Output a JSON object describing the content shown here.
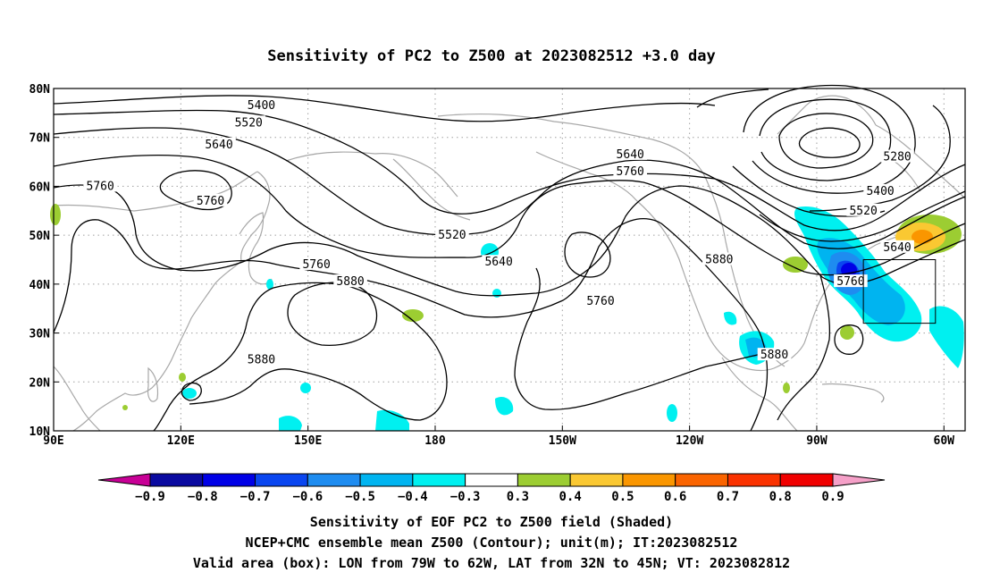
{
  "title": "Sensitivity of PC2 to Z500 at 2023082512 +3.0 day",
  "map": {
    "lon_min": 90,
    "lon_max": 305,
    "lat_min": 10,
    "lat_max": 80,
    "lat_ticks": [
      {
        "value": 80,
        "label": "80N"
      },
      {
        "value": 70,
        "label": "70N"
      },
      {
        "value": 60,
        "label": "60N"
      },
      {
        "value": 50,
        "label": "50N"
      },
      {
        "value": 40,
        "label": "40N"
      },
      {
        "value": 30,
        "label": "30N"
      },
      {
        "value": 20,
        "label": "20N"
      },
      {
        "value": 10,
        "label": "10N"
      }
    ],
    "lon_ticks": [
      {
        "value": 90,
        "label": "90E"
      },
      {
        "value": 120,
        "label": "120E"
      },
      {
        "value": 150,
        "label": "150E"
      },
      {
        "value": 180,
        "label": "180"
      },
      {
        "value": 210,
        "label": "150W"
      },
      {
        "value": 240,
        "label": "120W"
      },
      {
        "value": 270,
        "label": "90W"
      },
      {
        "value": 300,
        "label": "60W"
      }
    ],
    "valid_box": {
      "lon_from": 281,
      "lon_to": 298,
      "lat_from": 32,
      "lat_to": 45
    },
    "contour_labels": [
      {
        "text": "5400",
        "lon": 139,
        "lat": 76.5
      },
      {
        "text": "5520",
        "lon": 136,
        "lat": 73.0
      },
      {
        "text": "5640",
        "lon": 129,
        "lat": 68.5
      },
      {
        "text": "5760",
        "lon": 101,
        "lat": 60.0
      },
      {
        "text": "5760",
        "lon": 127,
        "lat": 57.0
      },
      {
        "text": "5520",
        "lon": 184,
        "lat": 50.0
      },
      {
        "text": "5640",
        "lon": 195,
        "lat": 44.5
      },
      {
        "text": "5760",
        "lon": 152,
        "lat": 44.0
      },
      {
        "text": "5880",
        "lon": 160,
        "lat": 40.5
      },
      {
        "text": "5640",
        "lon": 226,
        "lat": 66.5
      },
      {
        "text": "5760",
        "lon": 226,
        "lat": 63.0
      },
      {
        "text": "5760",
        "lon": 219,
        "lat": 36.5
      },
      {
        "text": "5880",
        "lon": 247,
        "lat": 45.0
      },
      {
        "text": "5880",
        "lon": 139,
        "lat": 24.5
      },
      {
        "text": "5880",
        "lon": 260,
        "lat": 25.5
      },
      {
        "text": "5280",
        "lon": 289,
        "lat": 66.0
      },
      {
        "text": "5400",
        "lon": 285,
        "lat": 59.0
      },
      {
        "text": "5520",
        "lon": 281,
        "lat": 55.0
      },
      {
        "text": "5640",
        "lon": 289,
        "lat": 47.5
      },
      {
        "text": "5760",
        "lon": 278,
        "lat": 40.5
      }
    ]
  },
  "colorbar": {
    "labels": [
      "−0.9",
      "−0.8",
      "−0.7",
      "−0.6",
      "−0.5",
      "−0.4",
      "−0.3",
      "0.3",
      "0.4",
      "0.5",
      "0.6",
      "0.7",
      "0.8",
      "0.9"
    ],
    "colors": [
      "#c80096",
      "#0a0aa0",
      "#0000e6",
      "#0a46f0",
      "#1e8cf0",
      "#00b4f0",
      "#00f0f0",
      "#ffffff",
      "#9ccd32",
      "#fac832",
      "#fa9600",
      "#fa6400",
      "#fa3200",
      "#f00000",
      "#f5a0c8"
    ]
  },
  "caption": {
    "line1": "Sensitivity of EOF PC2 to Z500 field (Shaded)",
    "line2": "NCEP+CMC ensemble mean Z500 (Contour); unit(m); IT:2023082512",
    "line3": "Valid area (box): LON from 79W to 62W, LAT from 32N to 45N; VT: 2023082812"
  }
}
